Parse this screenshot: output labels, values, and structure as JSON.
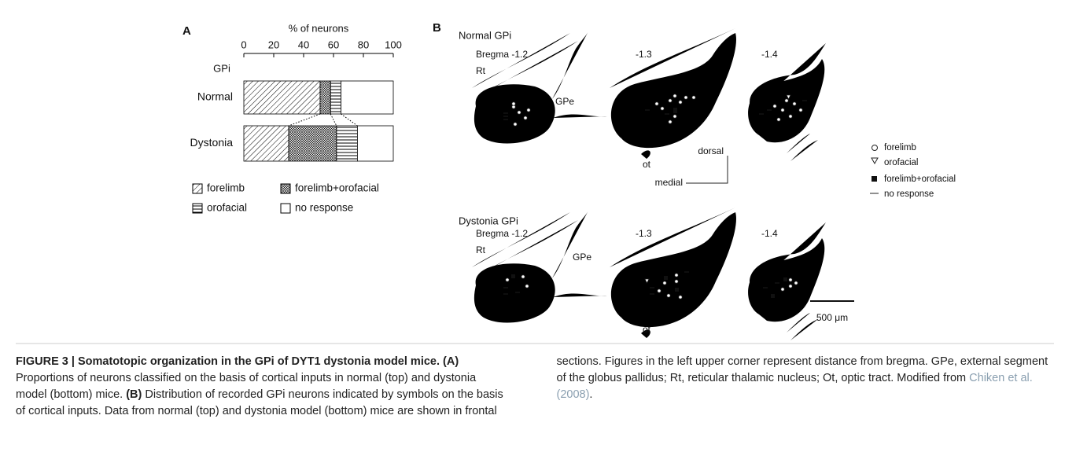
{
  "chart_data": {
    "type": "bar",
    "orientation": "horizontal",
    "stacked": true,
    "panel_label": "A",
    "xlabel": "% of neurons",
    "group_label": "GPi",
    "categories": [
      "Normal",
      "Dystonia"
    ],
    "series": [
      {
        "name": "forelimb",
        "pattern": "diagonal",
        "color": "#000000",
        "values": [
          51,
          30
        ]
      },
      {
        "name": "forelimb+orofacial",
        "pattern": "crosshatch",
        "color": "#000000",
        "values": [
          7,
          32
        ]
      },
      {
        "name": "orofacial",
        "pattern": "horizontal",
        "color": "#000000",
        "values": [
          7,
          14
        ]
      },
      {
        "name": "no response",
        "pattern": "none",
        "color": "#000000",
        "values": [
          35,
          24
        ]
      }
    ],
    "xlim": [
      0,
      100
    ],
    "xticks": [
      0,
      20,
      40,
      60,
      80,
      100
    ]
  },
  "panel_b": {
    "label": "B",
    "normal": {
      "title": "Normal GPi",
      "sections": [
        "Bregma -1.2",
        "-1.3",
        "-1.4"
      ],
      "rt": "Rt",
      "gpe": "GPe",
      "ot": "ot"
    },
    "dystonia": {
      "title": "Dystonia GPi",
      "sections": [
        "Bregma -1.2",
        "-1.3",
        "-1.4"
      ],
      "rt": "Rt",
      "gpe": "GPe",
      "ot": "ot"
    },
    "orientation": {
      "dorsal": "dorsal",
      "medial": "medial"
    },
    "legend": [
      "forelimb",
      "orofacial",
      "forelimb+orofacial",
      "no response"
    ],
    "scale_bar": "500 μm"
  },
  "caption": {
    "title": "FIGURE 3 | Somatotopic organization in the GPi of DYT1 dystonia model mice.",
    "a_label": "(A)",
    "a_text": "Proportions of neurons classified on the basis of cortical inputs in normal (top) and dystonia model (bottom) mice.",
    "b_label": "(B)",
    "b_text": "Distribution of recorded GPi neurons indicated by symbols on the basis of cortical inputs. Data from normal (top) and dystonia model (bottom) mice are shown in frontal sections. Figures in the left upper corner represent distance from bregma. GPe, external segment of the globus pallidus; Rt, reticular thalamic nucleus; Ot, optic tract. Modified from",
    "reference": "Chiken et al. (2008)",
    "tail": "."
  }
}
